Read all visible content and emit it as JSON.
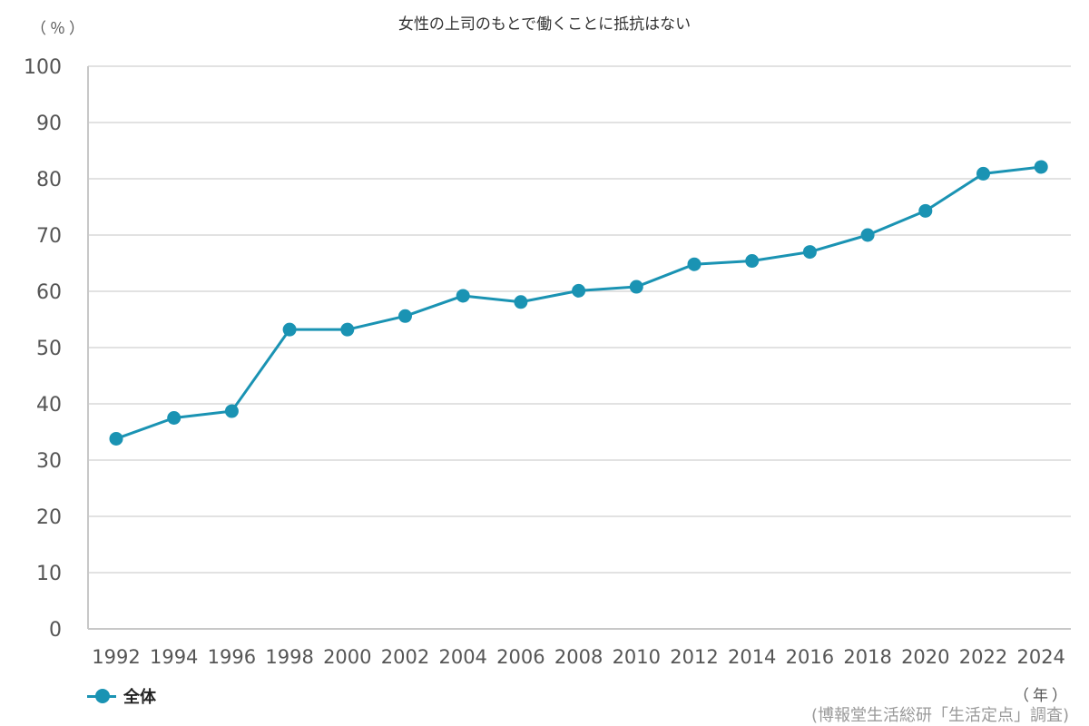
{
  "chart_data": {
    "type": "line",
    "title": "女性の上司のもとで働くことに抵抗はない",
    "ylabel": "（％）",
    "xlabel": "（年）",
    "source": "(博報堂生活総研「生活定点」調査)",
    "ylim": [
      0,
      100
    ],
    "yticks": [
      0,
      10,
      20,
      30,
      40,
      50,
      60,
      70,
      80,
      90,
      100
    ],
    "grid": true,
    "legend_position": "bottom-left",
    "categories": [
      "1992",
      "1994",
      "1996",
      "1998",
      "2000",
      "2002",
      "2004",
      "2006",
      "2008",
      "2010",
      "2012",
      "2014",
      "2016",
      "2018",
      "2020",
      "2022",
      "2024"
    ],
    "series": [
      {
        "name": "全体",
        "color": "#1a93b3",
        "values": [
          33.8,
          37.5,
          38.7,
          53.2,
          53.2,
          55.6,
          59.2,
          58.1,
          60.1,
          60.8,
          64.8,
          65.4,
          67.0,
          70.0,
          74.3,
          80.9,
          82.1
        ]
      }
    ]
  }
}
